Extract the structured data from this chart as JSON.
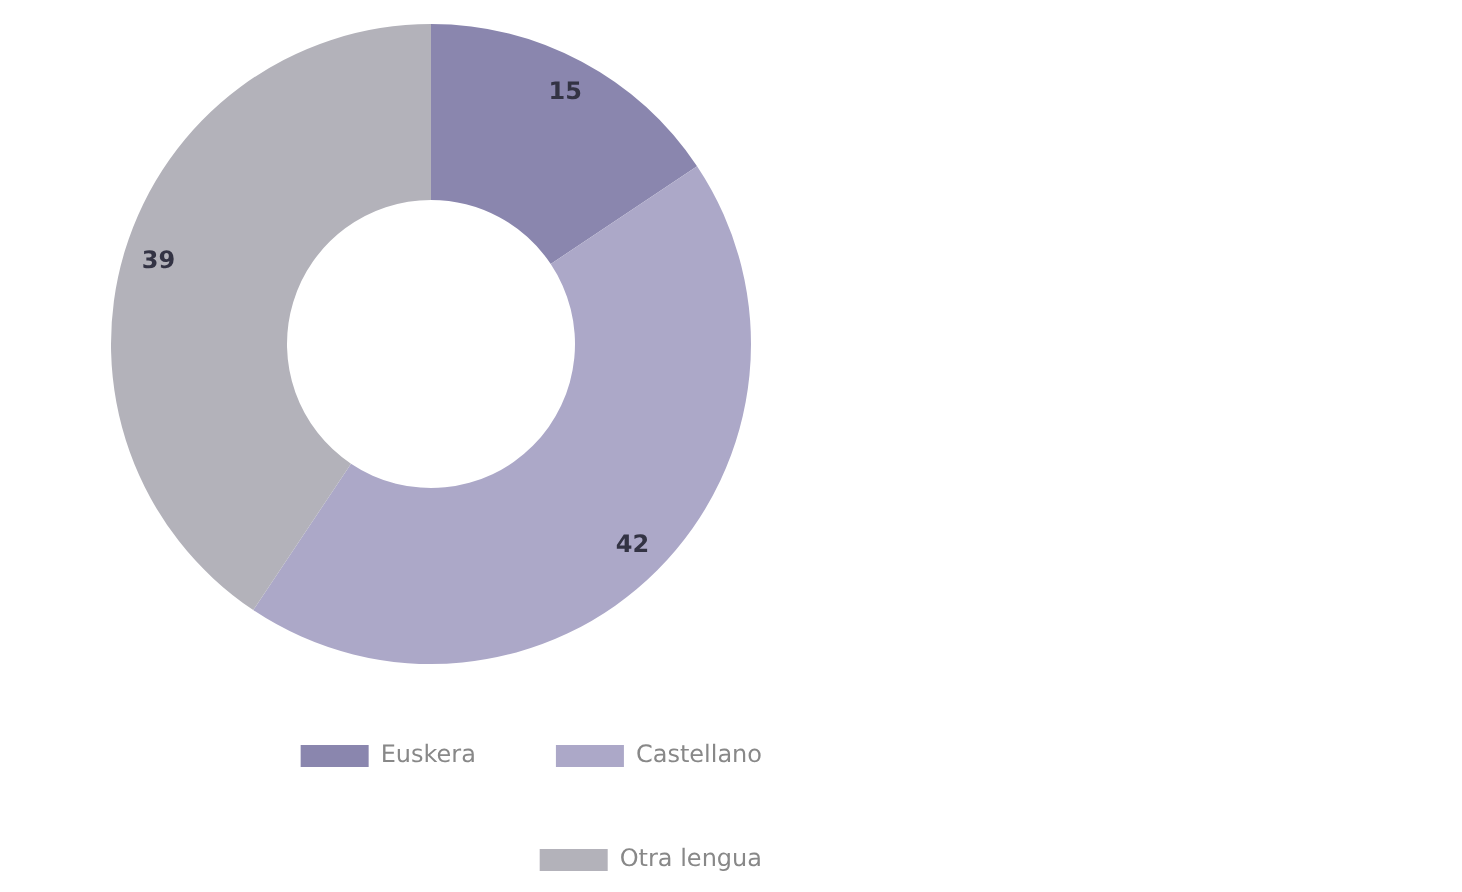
{
  "chart_data": {
    "type": "donut",
    "categories": [
      "Euskera",
      "Castellano",
      "Otra lengua"
    ],
    "values": [
      15,
      42,
      39
    ],
    "colors": [
      "#8a86ae",
      "#aca8c8",
      "#b3b2ba"
    ],
    "data_labels": true,
    "legend": "bottom right"
  }
}
